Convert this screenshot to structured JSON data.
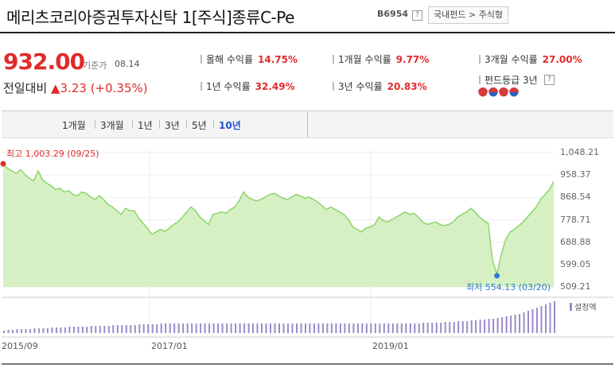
{
  "header": {
    "title": "메리츠코리아증권투자신탁 1[주식]종류C-Pe",
    "code": "B6954",
    "help": "?",
    "category": "국내펀드 > 주식형"
  },
  "quote": {
    "price": "932.00",
    "basis_label": "기준가",
    "date": "08.14",
    "change_label": "전일대비",
    "change_arrow": "▲",
    "change_value": "3.23 (+0.35%)"
  },
  "returns": [
    {
      "label": "올해 수익률",
      "value": "14.75%"
    },
    {
      "label": "1개월 수익률",
      "value": "9.77%"
    },
    {
      "label": "3개월 수익률",
      "value": "27.00%"
    },
    {
      "label": "1년 수익률",
      "value": "32.49%"
    },
    {
      "label": "3년 수익률",
      "value": "20.83%"
    }
  ],
  "grade": {
    "label": "펀드등급 3년",
    "help": "?",
    "rating": 4
  },
  "period_tabs": [
    {
      "label": "1개월",
      "active": false
    },
    {
      "label": "3개월",
      "active": false
    },
    {
      "label": "1년",
      "active": false
    },
    {
      "label": "3년",
      "active": false
    },
    {
      "label": "5년",
      "active": false
    },
    {
      "label": "10년",
      "active": true
    }
  ],
  "chart_data": {
    "type": "area",
    "x_tick_labels": [
      "2015/09",
      "2017/01",
      "2019/01"
    ],
    "y_tick_labels": [
      "1,048.21",
      "958.37",
      "868.54",
      "778.71",
      "688.88",
      "599.05",
      "509.21"
    ],
    "ylim": [
      509.21,
      1048.21
    ],
    "grid": true,
    "max_annotation": "최고 1,003.29 (09/25)",
    "min_annotation": "최저 554.13 (03/20)",
    "max": {
      "value": 1003.29,
      "date": "09/25"
    },
    "min": {
      "value": 554.13,
      "date": "03/20"
    },
    "series": [
      {
        "type": "area",
        "color": "#8ed46a",
        "values": [
          1003,
          985,
          975,
          965,
          980,
          960,
          945,
          935,
          975,
          940,
          925,
          915,
          900,
          905,
          890,
          895,
          880,
          875,
          890,
          885,
          870,
          860,
          875,
          860,
          840,
          830,
          815,
          800,
          825,
          815,
          815,
          785,
          765,
          745,
          720,
          730,
          740,
          732,
          745,
          760,
          770,
          790,
          810,
          830,
          815,
          790,
          775,
          760,
          800,
          805,
          810,
          805,
          820,
          830,
          855,
          890,
          870,
          860,
          855,
          860,
          870,
          880,
          885,
          875,
          865,
          860,
          870,
          880,
          875,
          865,
          870,
          860,
          850,
          835,
          820,
          830,
          820,
          810,
          800,
          780,
          750,
          740,
          730,
          745,
          750,
          760,
          790,
          775,
          770,
          780,
          790,
          800,
          810,
          800,
          805,
          790,
          770,
          760,
          765,
          770,
          760,
          755,
          760,
          770,
          790,
          800,
          810,
          825,
          810,
          790,
          775,
          765,
          615,
          560,
          640,
          700,
          730,
          740,
          755,
          770,
          790,
          810,
          830,
          860,
          880,
          900,
          932
        ]
      },
      {
        "name": "설정액",
        "type": "bar",
        "color": "#9b8ac9",
        "values": [
          3,
          4,
          4,
          5,
          5,
          5,
          5,
          6,
          6,
          6,
          6,
          7,
          7,
          7,
          7,
          8,
          8,
          8,
          8,
          8,
          9,
          9,
          9,
          9,
          9,
          10,
          10,
          10,
          10,
          10,
          10,
          11,
          11,
          11,
          11,
          11,
          12,
          12,
          12,
          12,
          12,
          12,
          12,
          12,
          12,
          12,
          12,
          12,
          12,
          12,
          12,
          12,
          12,
          12,
          12,
          12,
          12,
          12,
          12,
          12,
          12,
          12,
          12,
          12,
          12,
          12,
          12,
          12,
          12,
          12,
          12,
          12,
          12,
          12,
          12,
          12,
          12,
          12,
          12,
          12,
          12,
          12,
          12,
          12,
          12,
          12,
          12,
          12,
          12,
          12,
          12,
          12,
          12,
          12,
          12,
          12,
          13,
          13,
          13,
          13,
          13,
          14,
          14,
          14,
          15,
          15,
          15,
          16,
          16,
          17,
          17,
          18,
          18,
          19,
          20,
          21,
          22,
          23,
          24,
          26,
          28,
          30,
          32,
          34,
          36,
          38,
          40
        ]
      }
    ]
  },
  "colors": {
    "accent_red": "#e12a2a",
    "tab_active": "#2255cc",
    "line": "#8ed46a",
    "bars": "#9b8ac9",
    "min_marker": "#2f7bd6"
  }
}
